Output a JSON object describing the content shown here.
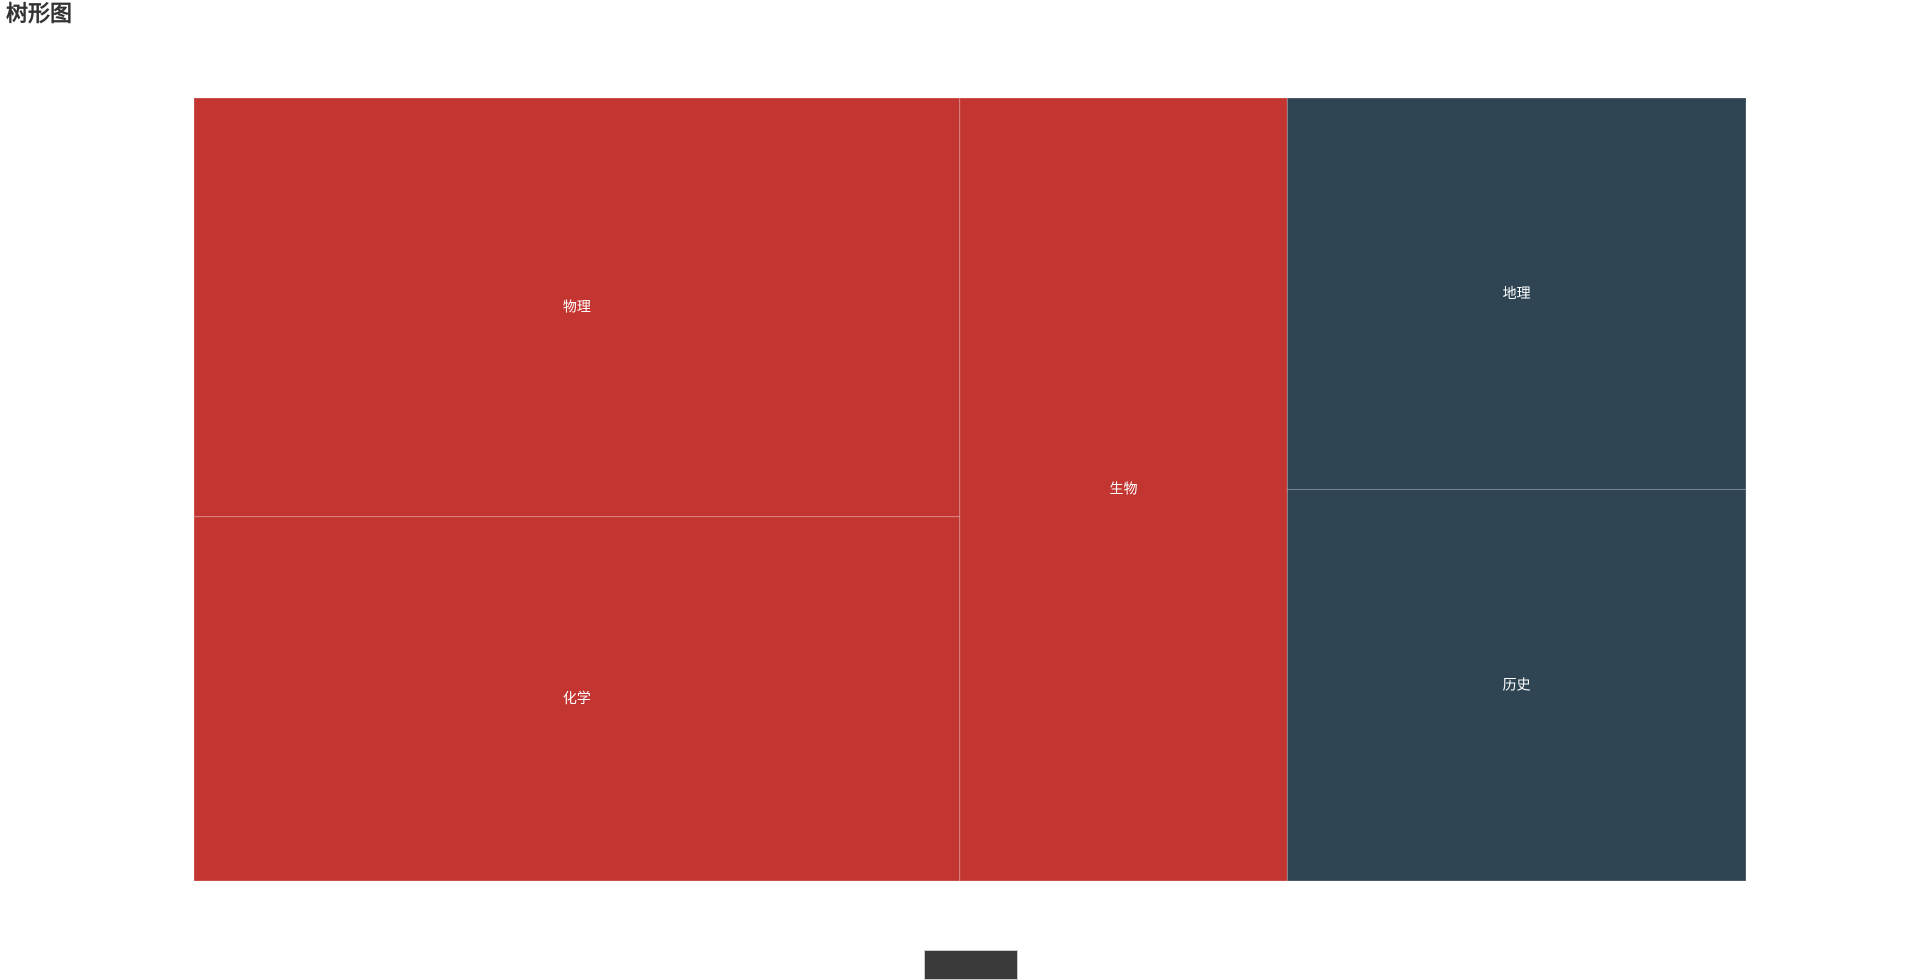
{
  "page": {
    "title": "树形图"
  },
  "chart_data": {
    "type": "treemap",
    "title": "树形图",
    "groups": [
      {
        "color": "#c23531",
        "items": [
          {
            "name": "物理",
            "value": 100
          },
          {
            "name": "化学",
            "value": 87
          },
          {
            "name": "生物",
            "value": 80
          }
        ]
      },
      {
        "color": "#2f4554",
        "items": [
          {
            "name": "地理",
            "value": 56
          },
          {
            "name": "历史",
            "value": 56
          }
        ]
      }
    ]
  }
}
